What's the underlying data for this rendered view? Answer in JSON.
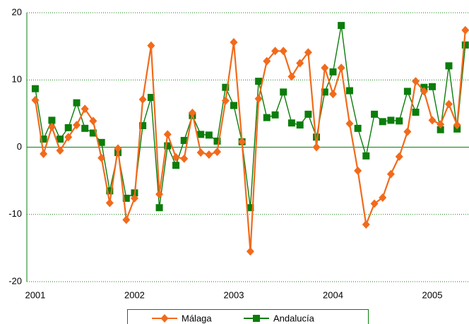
{
  "chart_data": {
    "type": "line",
    "x": [
      2001,
      2001.083,
      2001.167,
      2001.25,
      2001.333,
      2001.417,
      2001.5,
      2001.583,
      2001.667,
      2001.75,
      2001.833,
      2001.917,
      2002,
      2002.083,
      2002.167,
      2002.25,
      2002.333,
      2002.417,
      2002.5,
      2002.583,
      2002.667,
      2002.75,
      2002.833,
      2002.917,
      2003,
      2003.083,
      2003.167,
      2003.25,
      2003.333,
      2003.417,
      2003.5,
      2003.583,
      2003.667,
      2003.75,
      2003.833,
      2003.917,
      2004,
      2004.083,
      2004.167,
      2004.25,
      2004.333,
      2004.417,
      2004.5,
      2004.583,
      2004.667,
      2004.75,
      2004.833,
      2004.917,
      2005,
      2005.083,
      2005.167,
      2005.25,
      2005.333
    ],
    "series": [
      {
        "name": "Málaga",
        "color": "#f26a1b",
        "marker": "diamond",
        "values": [
          7.0,
          -1.0,
          3.0,
          -0.5,
          1.5,
          3.3,
          5.7,
          3.9,
          -1.6,
          -8.3,
          -0.2,
          -10.8,
          -7.6,
          7.1,
          15.1,
          -7.0,
          1.9,
          -1.5,
          -1.7,
          5.1,
          -0.8,
          -1.1,
          -0.7,
          6.9,
          15.6,
          0.8,
          -15.5,
          7.2,
          12.8,
          14.3,
          14.3,
          10.5,
          12.5,
          14.1,
          0.0,
          11.8,
          7.9,
          11.8,
          3.5,
          -3.5,
          -11.5,
          -8.4,
          -7.5,
          -4.0,
          -1.4,
          2.3,
          9.8,
          8.3,
          4.0,
          3.4,
          6.4,
          3.3,
          17.4
        ]
      },
      {
        "name": "Andalucía",
        "color": "#0b7d0b",
        "marker": "square",
        "values": [
          8.7,
          1.2,
          4.0,
          1.2,
          2.9,
          6.6,
          2.8,
          2.1,
          0.7,
          -6.5,
          -0.8,
          -7.6,
          -6.8,
          3.2,
          7.4,
          -9.0,
          0.2,
          -2.7,
          1.0,
          4.7,
          1.9,
          1.8,
          0.9,
          8.9,
          6.2,
          0.8,
          -9.0,
          9.8,
          4.4,
          4.8,
          8.2,
          3.6,
          3.3,
          4.9,
          1.5,
          8.2,
          11.2,
          18.1,
          8.4,
          2.8,
          -1.3,
          4.9,
          3.8,
          4.0,
          3.9,
          8.3,
          5.2,
          8.9,
          9.0,
          2.6,
          12.1,
          2.7,
          15.2
        ]
      }
    ],
    "xlim": [
      2000.915,
      2005.37
    ],
    "xticks": [
      2001,
      2002,
      2003,
      2004,
      2005
    ],
    "ylim": [
      -20,
      20
    ],
    "yticks": [
      -20,
      -10,
      0,
      10,
      20
    ],
    "grid": true
  }
}
